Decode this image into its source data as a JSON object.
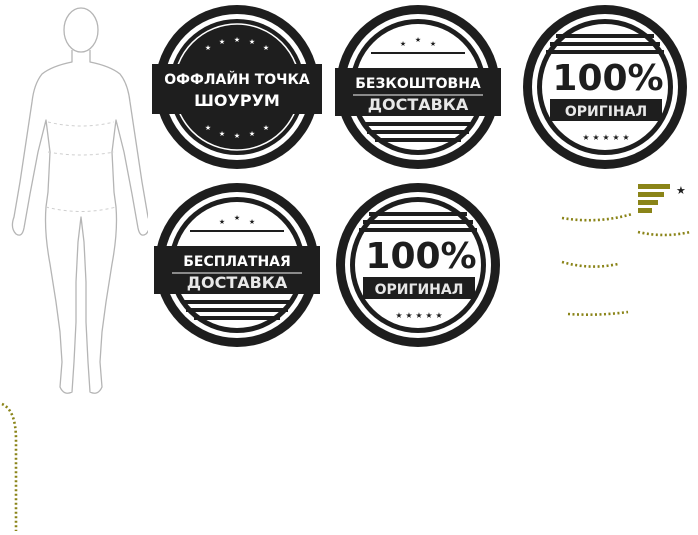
{
  "badges": [
    {
      "id": "showroom",
      "line1": "ОФФЛАЙН ТОЧКА",
      "line2": "ШОУРУМ"
    },
    {
      "id": "free-delivery-ua",
      "line1": "БЕЗКОШТОВНА",
      "line2": "ДОСТАВКА"
    },
    {
      "id": "original-ua",
      "big": "100%",
      "line2": "ОРИГІНАЛ"
    },
    {
      "id": "free-delivery-ru",
      "line1": "БЕСПЛАТНАЯ",
      "line2": "ДОСТАВКА"
    },
    {
      "id": "original-ru",
      "big": "100%",
      "line2": "ОРИГИНАЛ"
    }
  ],
  "colors": {
    "badge": "#1e1e1e",
    "accent": "#8a8418",
    "label_text": "#e8e8e8",
    "figure_outline": "#b5b5b5"
  },
  "icons": [
    "human-figure-outline",
    "brand-logo-icon",
    "star-icon"
  ]
}
